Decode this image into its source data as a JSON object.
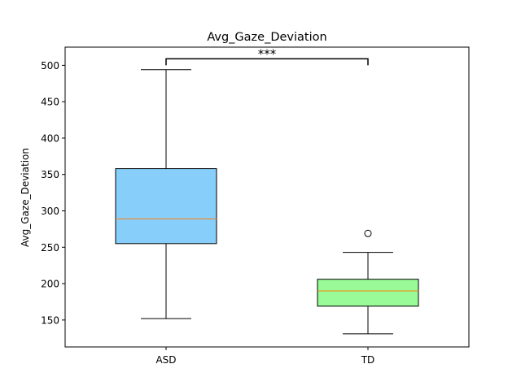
{
  "chart_data": {
    "type": "box",
    "title": "Avg_Gaze_Deviation",
    "xlabel": "",
    "ylabel": "Avg_Gaze_Deviation",
    "ylim": [
      113,
      525
    ],
    "yticks": [
      150,
      200,
      250,
      300,
      350,
      400,
      450,
      500
    ],
    "grid": false,
    "categories": [
      "ASD",
      "TD"
    ],
    "boxes": [
      {
        "category": "ASD",
        "whisker_low": 152,
        "q1": 255,
        "median": 289,
        "q3": 358,
        "whisker_high": 494,
        "outliers": [],
        "color": "#87cefa"
      },
      {
        "category": "TD",
        "whisker_low": 131,
        "q1": 169,
        "median": 190,
        "q3": 206,
        "whisker_high": 243,
        "outliers": [
          269
        ],
        "color": "#98fb98"
      }
    ],
    "median_color": "#ff7f0e",
    "annotation": {
      "text": "***",
      "from": "ASD",
      "to": "TD",
      "y": 509
    }
  }
}
